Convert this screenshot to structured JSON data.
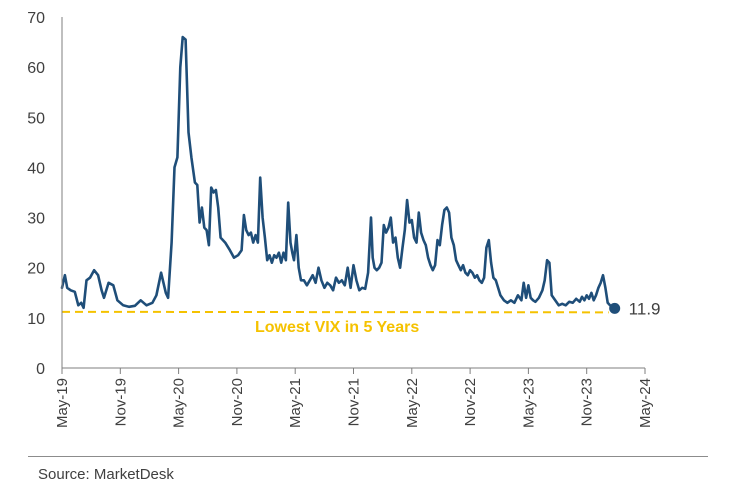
{
  "chart_data": {
    "type": "line",
    "title": "",
    "xlabel": "",
    "ylabel": "",
    "ylim": [
      0,
      70
    ],
    "yticks": [
      0,
      10,
      20,
      30,
      40,
      50,
      60,
      70
    ],
    "xticks": [
      "May-19",
      "Nov-19",
      "May-20",
      "Nov-20",
      "May-21",
      "Nov-21",
      "May-22",
      "Nov-22",
      "May-23",
      "Nov-23",
      "May-24"
    ],
    "grid": false,
    "series": [
      {
        "name": "VIX",
        "color": "#1f4e79",
        "points": [
          [
            0.0,
            16.0
          ],
          [
            0.05,
            18.5
          ],
          [
            0.09,
            16.0
          ],
          [
            0.15,
            15.5
          ],
          [
            0.22,
            15.2
          ],
          [
            0.28,
            12.5
          ],
          [
            0.33,
            13.0
          ],
          [
            0.37,
            12.0
          ],
          [
            0.42,
            17.5
          ],
          [
            0.48,
            18.0
          ],
          [
            0.55,
            19.5
          ],
          [
            0.62,
            18.5
          ],
          [
            0.68,
            15.5
          ],
          [
            0.72,
            14.0
          ],
          [
            0.8,
            17.0
          ],
          [
            0.88,
            16.5
          ],
          [
            0.95,
            13.5
          ],
          [
            1.05,
            12.5
          ],
          [
            1.15,
            12.2
          ],
          [
            1.25,
            12.4
          ],
          [
            1.35,
            13.5
          ],
          [
            1.45,
            12.5
          ],
          [
            1.55,
            13.0
          ],
          [
            1.62,
            14.5
          ],
          [
            1.7,
            19.0
          ],
          [
            1.78,
            15.0
          ],
          [
            1.82,
            14.0
          ],
          [
            1.88,
            25.0
          ],
          [
            1.93,
            40.0
          ],
          [
            1.98,
            42.0
          ],
          [
            2.03,
            60.0
          ],
          [
            2.07,
            66.0
          ],
          [
            2.12,
            65.5
          ],
          [
            2.17,
            47.0
          ],
          [
            2.22,
            42.0
          ],
          [
            2.28,
            37.0
          ],
          [
            2.32,
            36.5
          ],
          [
            2.36,
            29.0
          ],
          [
            2.4,
            32.0
          ],
          [
            2.44,
            28.0
          ],
          [
            2.48,
            27.5
          ],
          [
            2.52,
            24.5
          ],
          [
            2.56,
            36.0
          ],
          [
            2.6,
            35.0
          ],
          [
            2.64,
            35.5
          ],
          [
            2.68,
            32.0
          ],
          [
            2.72,
            26.0
          ],
          [
            2.8,
            25.0
          ],
          [
            2.88,
            23.5
          ],
          [
            2.95,
            22.0
          ],
          [
            3.02,
            22.5
          ],
          [
            3.08,
            23.5
          ],
          [
            3.12,
            30.5
          ],
          [
            3.16,
            27.5
          ],
          [
            3.2,
            26.5
          ],
          [
            3.24,
            27.0
          ],
          [
            3.28,
            25.0
          ],
          [
            3.32,
            26.5
          ],
          [
            3.36,
            25.0
          ],
          [
            3.4,
            38.0
          ],
          [
            3.44,
            30.0
          ],
          [
            3.48,
            26.0
          ],
          [
            3.52,
            21.5
          ],
          [
            3.56,
            22.5
          ],
          [
            3.6,
            21.0
          ],
          [
            3.64,
            22.5
          ],
          [
            3.68,
            22.0
          ],
          [
            3.72,
            23.0
          ],
          [
            3.76,
            21.0
          ],
          [
            3.8,
            23.0
          ],
          [
            3.84,
            21.5
          ],
          [
            3.88,
            33.0
          ],
          [
            3.92,
            25.0
          ],
          [
            3.95,
            23.0
          ],
          [
            3.98,
            21.5
          ],
          [
            4.02,
            26.5
          ],
          [
            4.06,
            20.0
          ],
          [
            4.1,
            17.5
          ],
          [
            4.15,
            17.5
          ],
          [
            4.2,
            16.5
          ],
          [
            4.25,
            17.5
          ],
          [
            4.3,
            18.5
          ],
          [
            4.35,
            17.0
          ],
          [
            4.4,
            20.0
          ],
          [
            4.45,
            17.5
          ],
          [
            4.5,
            16.0
          ],
          [
            4.55,
            17.0
          ],
          [
            4.6,
            16.5
          ],
          [
            4.65,
            15.5
          ],
          [
            4.7,
            18.0
          ],
          [
            4.75,
            17.0
          ],
          [
            4.8,
            17.5
          ],
          [
            4.85,
            16.5
          ],
          [
            4.9,
            20.0
          ],
          [
            4.95,
            16.0
          ],
          [
            5.0,
            20.5
          ],
          [
            5.05,
            17.5
          ],
          [
            5.1,
            15.5
          ],
          [
            5.15,
            16.0
          ],
          [
            5.2,
            15.8
          ],
          [
            5.25,
            19.0
          ],
          [
            5.3,
            30.0
          ],
          [
            5.33,
            22.0
          ],
          [
            5.36,
            20.0
          ],
          [
            5.4,
            19.5
          ],
          [
            5.44,
            20.0
          ],
          [
            5.48,
            21.0
          ],
          [
            5.52,
            28.5
          ],
          [
            5.56,
            27.0
          ],
          [
            5.6,
            28.0
          ],
          [
            5.64,
            30.0
          ],
          [
            5.68,
            25.0
          ],
          [
            5.72,
            26.0
          ],
          [
            5.76,
            22.0
          ],
          [
            5.8,
            20.0
          ],
          [
            5.84,
            24.0
          ],
          [
            5.88,
            27.5
          ],
          [
            5.92,
            33.5
          ],
          [
            5.96,
            29.0
          ],
          [
            6.0,
            29.5
          ],
          [
            6.04,
            26.0
          ],
          [
            6.08,
            25.0
          ],
          [
            6.12,
            31.0
          ],
          [
            6.16,
            27.0
          ],
          [
            6.2,
            25.5
          ],
          [
            6.24,
            24.5
          ],
          [
            6.28,
            22.0
          ],
          [
            6.32,
            20.5
          ],
          [
            6.36,
            19.5
          ],
          [
            6.4,
            20.5
          ],
          [
            6.44,
            25.5
          ],
          [
            6.48,
            24.5
          ],
          [
            6.52,
            28.5
          ],
          [
            6.56,
            31.5
          ],
          [
            6.6,
            32.0
          ],
          [
            6.64,
            31.0
          ],
          [
            6.68,
            26.0
          ],
          [
            6.72,
            24.5
          ],
          [
            6.76,
            21.5
          ],
          [
            6.8,
            20.5
          ],
          [
            6.84,
            19.5
          ],
          [
            6.88,
            20.5
          ],
          [
            6.92,
            19.0
          ],
          [
            6.96,
            18.5
          ],
          [
            7.0,
            19.5
          ],
          [
            7.04,
            19.0
          ],
          [
            7.08,
            18.0
          ],
          [
            7.12,
            18.5
          ],
          [
            7.16,
            17.5
          ],
          [
            7.2,
            17.0
          ],
          [
            7.24,
            18.0
          ],
          [
            7.28,
            24.0
          ],
          [
            7.32,
            25.5
          ],
          [
            7.36,
            21.0
          ],
          [
            7.4,
            18.0
          ],
          [
            7.44,
            17.5
          ],
          [
            7.48,
            16.0
          ],
          [
            7.52,
            14.5
          ],
          [
            7.58,
            13.5
          ],
          [
            7.64,
            13.0
          ],
          [
            7.7,
            13.5
          ],
          [
            7.76,
            13.0
          ],
          [
            7.82,
            14.5
          ],
          [
            7.88,
            13.5
          ],
          [
            7.92,
            17.0
          ],
          [
            7.96,
            14.0
          ],
          [
            8.0,
            16.5
          ],
          [
            8.04,
            14.0
          ],
          [
            8.08,
            13.5
          ],
          [
            8.12,
            13.2
          ],
          [
            8.18,
            14.0
          ],
          [
            8.24,
            15.5
          ],
          [
            8.28,
            17.5
          ],
          [
            8.32,
            21.5
          ],
          [
            8.36,
            21.0
          ],
          [
            8.4,
            14.5
          ],
          [
            8.46,
            13.5
          ],
          [
            8.52,
            12.5
          ],
          [
            8.58,
            12.8
          ],
          [
            8.64,
            12.5
          ],
          [
            8.7,
            13.2
          ],
          [
            8.76,
            13.0
          ],
          [
            8.82,
            13.8
          ],
          [
            8.88,
            13.2
          ],
          [
            8.92,
            14.2
          ],
          [
            8.96,
            13.5
          ],
          [
            9.0,
            14.5
          ],
          [
            9.04,
            13.8
          ],
          [
            9.08,
            15.0
          ],
          [
            9.12,
            13.5
          ],
          [
            9.16,
            14.5
          ],
          [
            9.2,
            16.0
          ],
          [
            9.24,
            17.0
          ],
          [
            9.28,
            18.5
          ],
          [
            9.32,
            16.0
          ],
          [
            9.36,
            13.0
          ],
          [
            9.4,
            12.5
          ],
          [
            9.44,
            12.2
          ],
          [
            9.48,
            11.9
          ]
        ]
      }
    ],
    "reference_line": {
      "value": 11.2,
      "label": "Lowest VIX in 5 Years",
      "color": "#f5c200",
      "style": "dashed"
    },
    "end_label": {
      "value": 11.9,
      "text": "11.9"
    },
    "source": "Source: MarketDesk"
  }
}
